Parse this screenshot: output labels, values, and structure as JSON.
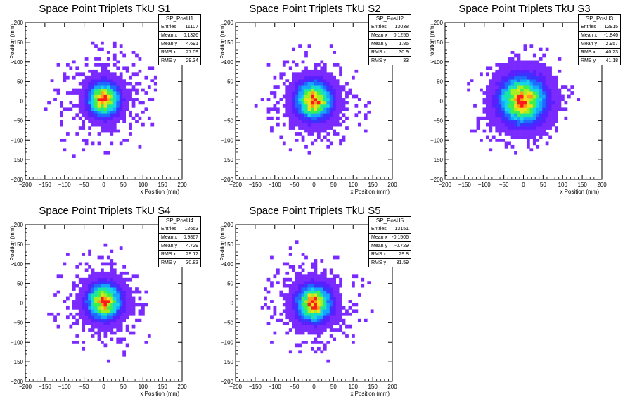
{
  "colors": {
    "palette": [
      "#7a2aff",
      "#5a1fff",
      "#3b32ff",
      "#1e6bff",
      "#15a6ff",
      "#16d6e6",
      "#19e6a0",
      "#3df04c",
      "#a3f01e",
      "#f0e01a",
      "#ff9a1a",
      "#ff1a1a"
    ],
    "axis": "#000000",
    "background": "#ffffff"
  },
  "chart_data": [
    {
      "type": "heatmap",
      "title": "Space Point Triplets TkU S1",
      "xlabel": "x Position (mm)",
      "ylabel": "y Position (mm)",
      "xlim": [
        -200,
        200
      ],
      "ylim": [
        -200,
        200
      ],
      "xticks": [
        "−200",
        "−150",
        "−100",
        "−50",
        "0",
        "50",
        "100",
        "150",
        "200"
      ],
      "yticks": [
        "−200",
        "−150",
        "−100",
        "−50",
        "0",
        "50",
        "100",
        "150",
        "200"
      ],
      "xtick_values": [
        -200,
        -150,
        -100,
        -50,
        0,
        50,
        100,
        150,
        200
      ],
      "ytick_values": [
        -200,
        -150,
        -100,
        -50,
        0,
        50,
        100,
        150,
        200
      ],
      "bin_width_mm": 8,
      "distribution": {
        "center_x": 0.13,
        "center_y": 4.7,
        "rms_x": 27.1,
        "rms_y": 29.3,
        "extent_mm": 165
      },
      "stats": {
        "name": "SP_PosU1",
        "rows": [
          {
            "label": "Entries",
            "value": "11107"
          },
          {
            "label": "Mean x",
            "value": "0.1326"
          },
          {
            "label": "Mean y",
            "value": "4.691"
          },
          {
            "label": "RMS x",
            "value": "27.09"
          },
          {
            "label": "RMS y",
            "value": "29.34"
          }
        ]
      }
    },
    {
      "type": "heatmap",
      "title": "Space Point Triplets TkU S2",
      "xlabel": "x Position (mm)",
      "ylabel": "y Position (mm)",
      "xlim": [
        -200,
        200
      ],
      "ylim": [
        -200,
        200
      ],
      "xticks": [
        "−200",
        "−150",
        "−100",
        "−50",
        "0",
        "50",
        "100",
        "150",
        "200"
      ],
      "yticks": [
        "−200",
        "−150",
        "−100",
        "−50",
        "0",
        "50",
        "100",
        "150",
        "200"
      ],
      "xtick_values": [
        -200,
        -150,
        -100,
        -50,
        0,
        50,
        100,
        150,
        200
      ],
      "ytick_values": [
        -200,
        -150,
        -100,
        -50,
        0,
        50,
        100,
        150,
        200
      ],
      "bin_width_mm": 8,
      "distribution": {
        "center_x": 0.13,
        "center_y": 1.9,
        "rms_x": 30.9,
        "rms_y": 33.0,
        "extent_mm": 160
      },
      "stats": {
        "name": "SP_PosU2",
        "rows": [
          {
            "label": "Entries",
            "value": "13038"
          },
          {
            "label": "Mean x",
            "value": "0.1256"
          },
          {
            "label": "Mean y",
            "value": "1.86"
          },
          {
            "label": "RMS x",
            "value": "30.9"
          },
          {
            "label": "RMS y",
            "value": "33"
          }
        ]
      }
    },
    {
      "type": "heatmap",
      "title": "Space Point Triplets TkU S3",
      "xlabel": "x Position (mm)",
      "ylabel": "y Position (mm)",
      "xlim": [
        -200,
        200
      ],
      "ylim": [
        -200,
        200
      ],
      "xticks": [
        "−200",
        "−150",
        "−100",
        "−50",
        "0",
        "50",
        "100",
        "150",
        "200"
      ],
      "yticks": [
        "−200",
        "−150",
        "−100",
        "−50",
        "0",
        "50",
        "100",
        "150",
        "200"
      ],
      "xtick_values": [
        -200,
        -150,
        -100,
        -50,
        0,
        50,
        100,
        150,
        200
      ],
      "ytick_values": [
        -200,
        -150,
        -100,
        -50,
        0,
        50,
        100,
        150,
        200
      ],
      "bin_width_mm": 8,
      "distribution": {
        "center_x": -1.8,
        "center_y": 3.0,
        "rms_x": 40.2,
        "rms_y": 41.2,
        "extent_mm": 160
      },
      "stats": {
        "name": "SP_PosU3",
        "rows": [
          {
            "label": "Entries",
            "value": "12915"
          },
          {
            "label": "Mean x",
            "value": "-1.846"
          },
          {
            "label": "Mean y",
            "value": "2.957"
          },
          {
            "label": "RMS x",
            "value": "40.23"
          },
          {
            "label": "RMS y",
            "value": "41.18"
          }
        ]
      }
    },
    {
      "type": "heatmap",
      "title": "Space Point Triplets TkU S4",
      "xlabel": "x Position (mm)",
      "ylabel": "y Position (mm)",
      "xlim": [
        -200,
        200
      ],
      "ylim": [
        -200,
        200
      ],
      "xticks": [
        "−200",
        "−150",
        "−100",
        "−50",
        "0",
        "50",
        "100",
        "150",
        "200"
      ],
      "yticks": [
        "−200",
        "−150",
        "−100",
        "−50",
        "0",
        "50",
        "100",
        "150",
        "200"
      ],
      "xtick_values": [
        -200,
        -150,
        -100,
        -50,
        0,
        50,
        100,
        150,
        200
      ],
      "ytick_values": [
        -200,
        -150,
        -100,
        -50,
        0,
        50,
        100,
        150,
        200
      ],
      "bin_width_mm": 8,
      "distribution": {
        "center_x": 1.0,
        "center_y": 4.7,
        "rms_x": 29.1,
        "rms_y": 30.8,
        "extent_mm": 160
      },
      "stats": {
        "name": "SP_PosU4",
        "rows": [
          {
            "label": "Entries",
            "value": "12663"
          },
          {
            "label": "Mean x",
            "value": "0.9867"
          },
          {
            "label": "Mean y",
            "value": "4.729"
          },
          {
            "label": "RMS x",
            "value": "29.12"
          },
          {
            "label": "RMS y",
            "value": "30.83"
          }
        ]
      }
    },
    {
      "type": "heatmap",
      "title": "Space Point Triplets TkU S5",
      "xlabel": "x Position (mm)",
      "ylabel": "y Position (mm)",
      "xlim": [
        -200,
        200
      ],
      "ylim": [
        -200,
        200
      ],
      "xticks": [
        "−200",
        "−150",
        "−100",
        "−50",
        "0",
        "50",
        "100",
        "150",
        "200"
      ],
      "yticks": [
        "−200",
        "−150",
        "−100",
        "−50",
        "0",
        "50",
        "100",
        "150",
        "200"
      ],
      "xtick_values": [
        -200,
        -150,
        -100,
        -50,
        0,
        50,
        100,
        150,
        200
      ],
      "ytick_values": [
        -200,
        -150,
        -100,
        -50,
        0,
        50,
        100,
        150,
        200
      ],
      "bin_width_mm": 8,
      "distribution": {
        "center_x": -0.15,
        "center_y": -0.7,
        "rms_x": 29.8,
        "rms_y": 31.6,
        "extent_mm": 165
      },
      "stats": {
        "name": "SP_PosU5",
        "rows": [
          {
            "label": "Entries",
            "value": "13151"
          },
          {
            "label": "Mean x",
            "value": "-0.1506"
          },
          {
            "label": "Mean y",
            "value": "-0.729"
          },
          {
            "label": "RMS x",
            "value": "29.8"
          },
          {
            "label": "RMS y",
            "value": "31.59"
          }
        ]
      }
    }
  ]
}
